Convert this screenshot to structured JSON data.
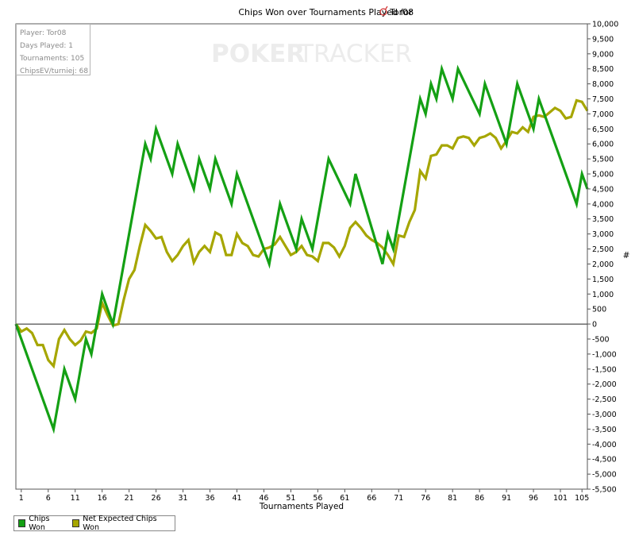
{
  "chart_data": {
    "type": "line",
    "title_prefix": "Chips Won over Tournaments Played for",
    "player": "Tor08",
    "xlabel": "Tournaments Played",
    "ylabel": "#",
    "watermark": {
      "part1": "POKER",
      "part2": "TRACKER"
    },
    "xlim": [
      0,
      105
    ],
    "ylim": [
      -5500,
      10000
    ],
    "x_ticks": [
      1,
      6,
      11,
      16,
      21,
      26,
      31,
      36,
      41,
      46,
      51,
      56,
      61,
      66,
      71,
      76,
      81,
      86,
      91,
      96,
      101,
      105
    ],
    "y_ticks": [
      {
        "v": 10000,
        "label": "10,000"
      },
      {
        "v": 9500,
        "label": "9,500"
      },
      {
        "v": 9000,
        "label": "9,000"
      },
      {
        "v": 8500,
        "label": "8,500"
      },
      {
        "v": 8000,
        "label": "8,000"
      },
      {
        "v": 7500,
        "label": "7,500"
      },
      {
        "v": 7000,
        "label": "7,000"
      },
      {
        "v": 6500,
        "label": "6,500"
      },
      {
        "v": 6000,
        "label": "6,000"
      },
      {
        "v": 5500,
        "label": "5,500"
      },
      {
        "v": 5000,
        "label": "5,000"
      },
      {
        "v": 4500,
        "label": "4,500"
      },
      {
        "v": 4000,
        "label": "4,000"
      },
      {
        "v": 3500,
        "label": "3,500"
      },
      {
        "v": 3000,
        "label": "3,000"
      },
      {
        "v": 2500,
        "label": "2,500"
      },
      {
        "v": 2000,
        "label": "2,000"
      },
      {
        "v": 1500,
        "label": "1,500"
      },
      {
        "v": 1000,
        "label": "1,000"
      },
      {
        "v": 500,
        "label": "500"
      },
      {
        "v": 0,
        "label": "0"
      },
      {
        "v": -500,
        "label": "-500"
      },
      {
        "v": -1000,
        "label": "-1,000"
      },
      {
        "v": -1500,
        "label": "-1,500"
      },
      {
        "v": -2000,
        "label": "-2,000"
      },
      {
        "v": -2500,
        "label": "-2,500"
      },
      {
        "v": -3000,
        "label": "-3,000"
      },
      {
        "v": -3500,
        "label": "-3,500"
      },
      {
        "v": -4000,
        "label": "-4,000"
      },
      {
        "v": -4500,
        "label": "-4,500"
      },
      {
        "v": -5000,
        "label": "-5,000"
      },
      {
        "v": -5500,
        "label": "-5,500"
      }
    ],
    "series": [
      {
        "name": "Chips Won",
        "color": "#14a014",
        "points": [
          [
            0,
            0
          ],
          [
            7,
            -3500
          ],
          [
            9,
            -1500
          ],
          [
            11,
            -2500
          ],
          [
            13,
            -500
          ],
          [
            14,
            -1000
          ],
          [
            16,
            1000
          ],
          [
            18,
            0
          ],
          [
            24,
            6000
          ],
          [
            25,
            5500
          ],
          [
            26,
            6500
          ],
          [
            29,
            5000
          ],
          [
            30,
            6000
          ],
          [
            33,
            4500
          ],
          [
            34,
            5500
          ],
          [
            36,
            4500
          ],
          [
            37,
            5500
          ],
          [
            40,
            4000
          ],
          [
            41,
            5000
          ],
          [
            47,
            2000
          ],
          [
            49,
            4000
          ],
          [
            52,
            2500
          ],
          [
            53,
            3500
          ],
          [
            55,
            2500
          ],
          [
            58,
            5500
          ],
          [
            62,
            4000
          ],
          [
            63,
            5000
          ],
          [
            68,
            2000
          ],
          [
            69,
            3000
          ],
          [
            70,
            2500
          ],
          [
            75,
            7500
          ],
          [
            76,
            7000
          ],
          [
            77,
            8000
          ],
          [
            78,
            7500
          ],
          [
            79,
            8500
          ],
          [
            81,
            7500
          ],
          [
            82,
            8500
          ],
          [
            86,
            7000
          ],
          [
            87,
            8000
          ],
          [
            91,
            6000
          ],
          [
            93,
            8000
          ],
          [
            96,
            6500
          ],
          [
            97,
            7500
          ],
          [
            104,
            4000
          ],
          [
            105,
            5000
          ],
          [
            106,
            4500
          ]
        ]
      },
      {
        "name": "Net Expected Chips Won",
        "color": "#a6a600",
        "points": [
          [
            0,
            0
          ],
          [
            1,
            -250
          ],
          [
            2,
            -150
          ],
          [
            3,
            -300
          ],
          [
            4,
            -700
          ],
          [
            5,
            -700
          ],
          [
            6,
            -1200
          ],
          [
            7,
            -1400
          ],
          [
            8,
            -500
          ],
          [
            9,
            -200
          ],
          [
            10,
            -500
          ],
          [
            11,
            -700
          ],
          [
            12,
            -550
          ],
          [
            13,
            -250
          ],
          [
            14,
            -300
          ],
          [
            15,
            -150
          ],
          [
            16,
            700
          ],
          [
            17,
            300
          ],
          [
            18,
            -50
          ],
          [
            19,
            0
          ],
          [
            20,
            800
          ],
          [
            21,
            1500
          ],
          [
            22,
            1800
          ],
          [
            23,
            2600
          ],
          [
            24,
            3300
          ],
          [
            25,
            3100
          ],
          [
            26,
            2850
          ],
          [
            27,
            2900
          ],
          [
            28,
            2400
          ],
          [
            29,
            2100
          ],
          [
            30,
            2300
          ],
          [
            31,
            2600
          ],
          [
            32,
            2800
          ],
          [
            33,
            2050
          ],
          [
            34,
            2400
          ],
          [
            35,
            2600
          ],
          [
            36,
            2400
          ],
          [
            37,
            3050
          ],
          [
            38,
            2950
          ],
          [
            39,
            2300
          ],
          [
            40,
            2300
          ],
          [
            41,
            3000
          ],
          [
            42,
            2700
          ],
          [
            43,
            2600
          ],
          [
            44,
            2300
          ],
          [
            45,
            2250
          ],
          [
            46,
            2500
          ],
          [
            47,
            2550
          ],
          [
            48,
            2650
          ],
          [
            49,
            2900
          ],
          [
            50,
            2600
          ],
          [
            51,
            2300
          ],
          [
            52,
            2400
          ],
          [
            53,
            2600
          ],
          [
            54,
            2300
          ],
          [
            55,
            2250
          ],
          [
            56,
            2100
          ],
          [
            57,
            2700
          ],
          [
            58,
            2700
          ],
          [
            59,
            2550
          ],
          [
            60,
            2250
          ],
          [
            61,
            2600
          ],
          [
            62,
            3200
          ],
          [
            63,
            3400
          ],
          [
            64,
            3200
          ],
          [
            65,
            2950
          ],
          [
            66,
            2800
          ],
          [
            67,
            2700
          ],
          [
            68,
            2550
          ],
          [
            69,
            2300
          ],
          [
            70,
            2000
          ],
          [
            71,
            2950
          ],
          [
            72,
            2900
          ],
          [
            73,
            3400
          ],
          [
            74,
            3800
          ],
          [
            75,
            5100
          ],
          [
            76,
            4850
          ],
          [
            77,
            5600
          ],
          [
            78,
            5650
          ],
          [
            79,
            5950
          ],
          [
            80,
            5950
          ],
          [
            81,
            5850
          ],
          [
            82,
            6200
          ],
          [
            83,
            6250
          ],
          [
            84,
            6200
          ],
          [
            85,
            5950
          ],
          [
            86,
            6200
          ],
          [
            87,
            6250
          ],
          [
            88,
            6350
          ],
          [
            89,
            6200
          ],
          [
            90,
            5850
          ],
          [
            91,
            6100
          ],
          [
            92,
            6400
          ],
          [
            93,
            6350
          ],
          [
            94,
            6550
          ],
          [
            95,
            6400
          ],
          [
            96,
            6900
          ],
          [
            97,
            6950
          ],
          [
            98,
            6900
          ],
          [
            99,
            7050
          ],
          [
            100,
            7200
          ],
          [
            101,
            7100
          ],
          [
            102,
            6850
          ],
          [
            103,
            6900
          ],
          [
            104,
            7450
          ],
          [
            105,
            7400
          ],
          [
            106,
            7100
          ]
        ]
      }
    ]
  },
  "info_box": {
    "player": "Player: Tor08",
    "days": "Days Played: 1",
    "tournaments": "Tournaments: 105",
    "chipsev": "ChipsEV/turniej: 68"
  },
  "legend": [
    {
      "label": "Chips Won",
      "color": "#14a014"
    },
    {
      "label": "Net Expected Chips Won",
      "color": "#a6a600"
    }
  ]
}
